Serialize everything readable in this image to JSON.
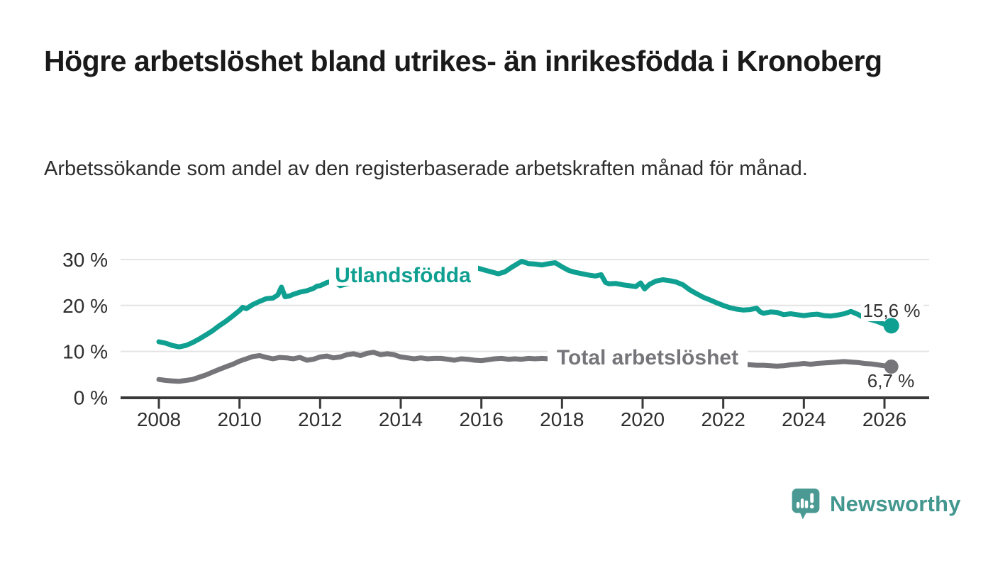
{
  "chart_data": {
    "type": "line",
    "title": "Högre arbetslöshet bland utrikes- än inrikesfödda i Kronoberg",
    "subtitle": "Arbetssökande som andel av den registerbaserade arbetskraften månad för månad.",
    "xlabel": "",
    "ylabel": "",
    "x_axis": {
      "range": [
        2007.05,
        2027.1
      ],
      "ticks": [
        {
          "label": "2008",
          "year": 2008
        },
        {
          "label": "2010",
          "year": 2010
        },
        {
          "label": "2012",
          "year": 2012
        },
        {
          "label": "2014",
          "year": 2014
        },
        {
          "label": "2016",
          "year": 2016
        },
        {
          "label": "2018",
          "year": 2018
        },
        {
          "label": "2020",
          "year": 2020
        },
        {
          "label": "2022",
          "year": 2022
        },
        {
          "label": "2024",
          "year": 2024
        },
        {
          "label": "2026",
          "year": 2026
        }
      ]
    },
    "y_axis": {
      "range": [
        0,
        31
      ],
      "unit": "%",
      "grid": true,
      "ticks": [
        {
          "label": "0 %",
          "value": 0
        },
        {
          "label": "10 %",
          "value": 10
        },
        {
          "label": "20 %",
          "value": 20
        },
        {
          "label": "30 %",
          "value": 30
        }
      ]
    },
    "legend_position": "inline-labels",
    "series": [
      {
        "name": "Utlandsfödda",
        "color": "#10a091",
        "end_label": "15,6 %",
        "end_value": 15.6,
        "points": [
          [
            2008.0,
            12.1
          ],
          [
            2008.17,
            11.8
          ],
          [
            2008.33,
            11.3
          ],
          [
            2008.5,
            11.0
          ],
          [
            2008.67,
            11.3
          ],
          [
            2008.83,
            11.9
          ],
          [
            2009.0,
            12.7
          ],
          [
            2009.17,
            13.6
          ],
          [
            2009.33,
            14.5
          ],
          [
            2009.5,
            15.6
          ],
          [
            2009.67,
            16.6
          ],
          [
            2009.83,
            17.7
          ],
          [
            2010.0,
            18.9
          ],
          [
            2010.08,
            19.6
          ],
          [
            2010.17,
            19.3
          ],
          [
            2010.33,
            20.2
          ],
          [
            2010.5,
            20.9
          ],
          [
            2010.67,
            21.5
          ],
          [
            2010.83,
            21.6
          ],
          [
            2010.95,
            22.3
          ],
          [
            2011.04,
            24.0
          ],
          [
            2011.13,
            21.9
          ],
          [
            2011.25,
            22.1
          ],
          [
            2011.33,
            22.4
          ],
          [
            2011.5,
            22.9
          ],
          [
            2011.67,
            23.2
          ],
          [
            2011.83,
            23.7
          ],
          [
            2011.92,
            24.2
          ],
          [
            2012.0,
            24.3
          ],
          [
            2012.17,
            25.0
          ],
          [
            2012.33,
            25.3
          ],
          [
            2012.5,
            24.3
          ],
          [
            2012.67,
            24.7
          ],
          [
            2012.83,
            25.0
          ],
          [
            2013.0,
            24.8
          ],
          [
            2013.17,
            25.2
          ],
          [
            2013.33,
            25.3
          ],
          [
            2013.5,
            24.8
          ],
          [
            2013.67,
            25.1
          ],
          [
            2013.83,
            25.3
          ],
          [
            2014.0,
            25.5
          ],
          [
            2014.25,
            25.6
          ],
          [
            2014.5,
            25.4
          ],
          [
            2014.75,
            25.7
          ],
          [
            2015.0,
            25.9
          ],
          [
            2015.25,
            26.3
          ],
          [
            2015.5,
            26.8
          ],
          [
            2015.75,
            27.5
          ],
          [
            2015.92,
            28.1
          ],
          [
            2016.08,
            27.7
          ],
          [
            2016.25,
            27.3
          ],
          [
            2016.42,
            26.9
          ],
          [
            2016.58,
            27.3
          ],
          [
            2016.75,
            28.3
          ],
          [
            2016.92,
            29.2
          ],
          [
            2017.0,
            29.6
          ],
          [
            2017.17,
            29.1
          ],
          [
            2017.33,
            29.0
          ],
          [
            2017.5,
            28.8
          ],
          [
            2017.67,
            29.1
          ],
          [
            2017.83,
            29.3
          ],
          [
            2018.0,
            28.4
          ],
          [
            2018.17,
            27.6
          ],
          [
            2018.33,
            27.2
          ],
          [
            2018.5,
            26.9
          ],
          [
            2018.67,
            26.6
          ],
          [
            2018.83,
            26.4
          ],
          [
            2018.97,
            26.7
          ],
          [
            2019.08,
            25.0
          ],
          [
            2019.17,
            24.7
          ],
          [
            2019.33,
            24.8
          ],
          [
            2019.5,
            24.5
          ],
          [
            2019.67,
            24.3
          ],
          [
            2019.83,
            24.1
          ],
          [
            2019.95,
            24.9
          ],
          [
            2020.05,
            23.6
          ],
          [
            2020.17,
            24.6
          ],
          [
            2020.33,
            25.3
          ],
          [
            2020.5,
            25.6
          ],
          [
            2020.67,
            25.4
          ],
          [
            2020.83,
            25.1
          ],
          [
            2021.0,
            24.5
          ],
          [
            2021.17,
            23.4
          ],
          [
            2021.33,
            22.6
          ],
          [
            2021.5,
            21.8
          ],
          [
            2021.67,
            21.2
          ],
          [
            2021.83,
            20.6
          ],
          [
            2022.0,
            20.0
          ],
          [
            2022.17,
            19.5
          ],
          [
            2022.33,
            19.2
          ],
          [
            2022.5,
            19.0
          ],
          [
            2022.67,
            19.1
          ],
          [
            2022.83,
            19.4
          ],
          [
            2022.92,
            18.6
          ],
          [
            2023.0,
            18.3
          ],
          [
            2023.17,
            18.6
          ],
          [
            2023.33,
            18.5
          ],
          [
            2023.5,
            18.0
          ],
          [
            2023.67,
            18.2
          ],
          [
            2023.83,
            18.0
          ],
          [
            2024.0,
            17.8
          ],
          [
            2024.17,
            18.0
          ],
          [
            2024.33,
            18.1
          ],
          [
            2024.5,
            17.8
          ],
          [
            2024.67,
            17.7
          ],
          [
            2024.83,
            17.9
          ],
          [
            2025.0,
            18.2
          ],
          [
            2025.17,
            18.7
          ],
          [
            2025.33,
            18.1
          ],
          [
            2025.5,
            17.3
          ],
          [
            2025.67,
            16.9
          ],
          [
            2025.83,
            16.5
          ],
          [
            2026.0,
            15.9
          ],
          [
            2026.17,
            15.6
          ]
        ]
      },
      {
        "name": "Total arbetslöshet",
        "color": "#76757a",
        "end_label": "6,7 %",
        "end_value": 6.7,
        "points": [
          [
            2008.0,
            3.9
          ],
          [
            2008.17,
            3.7
          ],
          [
            2008.33,
            3.6
          ],
          [
            2008.5,
            3.5
          ],
          [
            2008.67,
            3.7
          ],
          [
            2008.83,
            3.9
          ],
          [
            2009.0,
            4.4
          ],
          [
            2009.17,
            4.9
          ],
          [
            2009.33,
            5.5
          ],
          [
            2009.5,
            6.1
          ],
          [
            2009.67,
            6.7
          ],
          [
            2009.83,
            7.2
          ],
          [
            2010.0,
            7.9
          ],
          [
            2010.17,
            8.4
          ],
          [
            2010.33,
            8.9
          ],
          [
            2010.5,
            9.1
          ],
          [
            2010.67,
            8.7
          ],
          [
            2010.83,
            8.4
          ],
          [
            2011.0,
            8.7
          ],
          [
            2011.17,
            8.6
          ],
          [
            2011.33,
            8.4
          ],
          [
            2011.5,
            8.7
          ],
          [
            2011.67,
            8.1
          ],
          [
            2011.83,
            8.3
          ],
          [
            2012.0,
            8.8
          ],
          [
            2012.17,
            9.0
          ],
          [
            2012.33,
            8.6
          ],
          [
            2012.5,
            8.8
          ],
          [
            2012.67,
            9.3
          ],
          [
            2012.83,
            9.5
          ],
          [
            2013.0,
            9.1
          ],
          [
            2013.17,
            9.6
          ],
          [
            2013.33,
            9.8
          ],
          [
            2013.5,
            9.3
          ],
          [
            2013.67,
            9.5
          ],
          [
            2013.83,
            9.3
          ],
          [
            2014.0,
            8.8
          ],
          [
            2014.17,
            8.6
          ],
          [
            2014.33,
            8.4
          ],
          [
            2014.5,
            8.6
          ],
          [
            2014.67,
            8.4
          ],
          [
            2014.83,
            8.5
          ],
          [
            2015.0,
            8.5
          ],
          [
            2015.17,
            8.3
          ],
          [
            2015.33,
            8.1
          ],
          [
            2015.5,
            8.4
          ],
          [
            2015.67,
            8.3
          ],
          [
            2015.83,
            8.1
          ],
          [
            2016.0,
            8.0
          ],
          [
            2016.17,
            8.2
          ],
          [
            2016.33,
            8.4
          ],
          [
            2016.5,
            8.5
          ],
          [
            2016.67,
            8.3
          ],
          [
            2016.83,
            8.4
          ],
          [
            2017.0,
            8.3
          ],
          [
            2017.17,
            8.5
          ],
          [
            2017.33,
            8.4
          ],
          [
            2017.5,
            8.5
          ],
          [
            2017.67,
            8.4
          ],
          [
            2017.83,
            8.3
          ],
          [
            2018.0,
            8.2
          ],
          [
            2018.25,
            8.0
          ],
          [
            2018.5,
            7.9
          ],
          [
            2018.75,
            7.7
          ],
          [
            2019.0,
            7.5
          ],
          [
            2019.25,
            7.4
          ],
          [
            2019.5,
            7.3
          ],
          [
            2019.75,
            7.2
          ],
          [
            2020.0,
            7.4
          ],
          [
            2020.25,
            8.6
          ],
          [
            2020.5,
            8.9
          ],
          [
            2020.75,
            8.7
          ],
          [
            2021.0,
            8.4
          ],
          [
            2021.25,
            8.0
          ],
          [
            2021.5,
            7.7
          ],
          [
            2021.75,
            7.4
          ],
          [
            2022.0,
            7.3
          ],
          [
            2022.25,
            7.2
          ],
          [
            2022.5,
            7.2
          ],
          [
            2022.67,
            7.1
          ],
          [
            2022.83,
            7.0
          ],
          [
            2023.0,
            7.0
          ],
          [
            2023.17,
            6.9
          ],
          [
            2023.33,
            6.8
          ],
          [
            2023.5,
            6.9
          ],
          [
            2023.67,
            7.1
          ],
          [
            2023.83,
            7.2
          ],
          [
            2024.0,
            7.4
          ],
          [
            2024.17,
            7.2
          ],
          [
            2024.33,
            7.4
          ],
          [
            2024.5,
            7.5
          ],
          [
            2024.67,
            7.6
          ],
          [
            2024.83,
            7.7
          ],
          [
            2025.0,
            7.8
          ],
          [
            2025.17,
            7.7
          ],
          [
            2025.33,
            7.6
          ],
          [
            2025.5,
            7.4
          ],
          [
            2025.67,
            7.3
          ],
          [
            2025.83,
            7.1
          ],
          [
            2026.0,
            6.9
          ],
          [
            2026.17,
            6.7
          ]
        ]
      }
    ],
    "colors": {
      "axis": "#3a3a3a",
      "gridline": "#e4e4e4",
      "tick_label": "#2e2e2e",
      "value_label": "#333333",
      "background": "#ffffff"
    }
  },
  "branding": {
    "logo_text": "Newsworthy",
    "logo_color": "#43978f",
    "logo_icon": "speech-bubble-bar-chart-exclamation"
  }
}
